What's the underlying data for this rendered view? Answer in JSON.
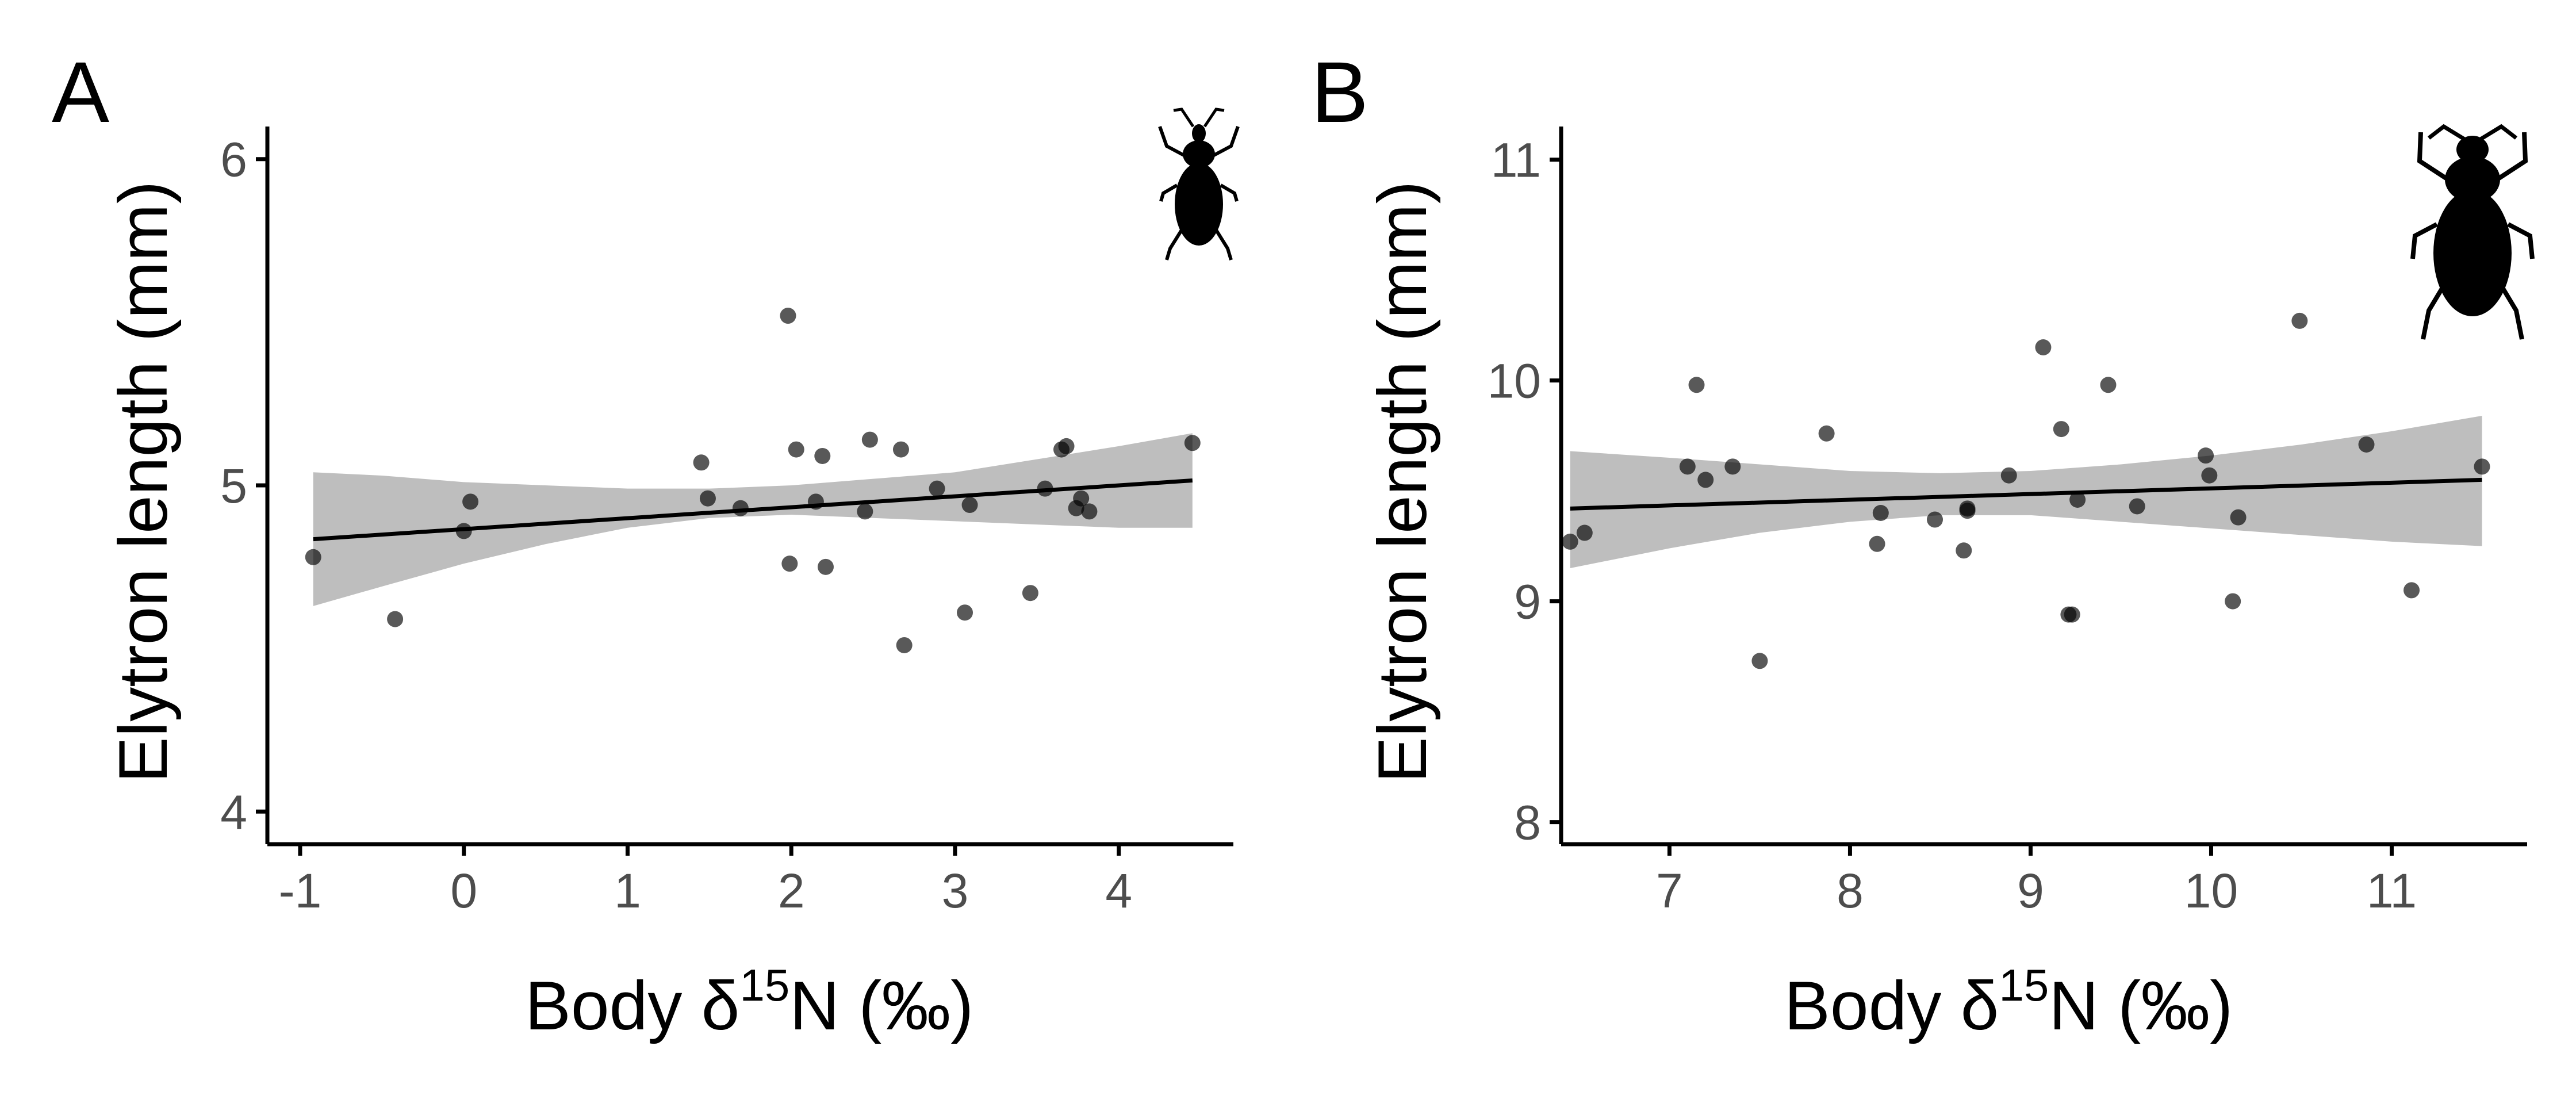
{
  "chart_data": [
    {
      "panel": "A",
      "type": "scatter",
      "xlabel_main": "Body δ",
      "xlabel_sup": "15",
      "xlabel_tail": "N (‰)",
      "ylabel": "Elytron length (mm)",
      "xlim": [
        -1.2,
        4.7
      ],
      "ylim": [
        3.9,
        6.1
      ],
      "x_ticks": [
        -1,
        0,
        1,
        2,
        3,
        4
      ],
      "y_ticks": [
        4,
        5,
        6
      ],
      "x_tick_labels": [
        "-1",
        "0",
        "1",
        "2",
        "3",
        "4"
      ],
      "y_tick_labels": [
        "4",
        "5",
        "6"
      ],
      "grid": false,
      "icon": "weevil-beetle-icon",
      "points": [
        {
          "x": -0.92,
          "y": 4.78
        },
        {
          "x": -0.42,
          "y": 4.59
        },
        {
          "x": 0.0,
          "y": 4.86
        },
        {
          "x": 0.04,
          "y": 4.95
        },
        {
          "x": 1.45,
          "y": 5.07
        },
        {
          "x": 1.49,
          "y": 4.96
        },
        {
          "x": 1.69,
          "y": 4.93
        },
        {
          "x": 1.98,
          "y": 5.52
        },
        {
          "x": 1.99,
          "y": 4.76
        },
        {
          "x": 2.03,
          "y": 5.11
        },
        {
          "x": 2.15,
          "y": 4.95
        },
        {
          "x": 2.19,
          "y": 5.09
        },
        {
          "x": 2.21,
          "y": 4.75
        },
        {
          "x": 2.45,
          "y": 4.92
        },
        {
          "x": 2.48,
          "y": 5.14
        },
        {
          "x": 2.67,
          "y": 5.11
        },
        {
          "x": 2.69,
          "y": 4.51
        },
        {
          "x": 2.89,
          "y": 4.99
        },
        {
          "x": 3.06,
          "y": 4.61
        },
        {
          "x": 3.09,
          "y": 4.94
        },
        {
          "x": 3.46,
          "y": 4.67
        },
        {
          "x": 3.55,
          "y": 4.99
        },
        {
          "x": 3.65,
          "y": 5.11
        },
        {
          "x": 3.68,
          "y": 5.12
        },
        {
          "x": 3.74,
          "y": 4.93
        },
        {
          "x": 3.77,
          "y": 4.96
        },
        {
          "x": 3.82,
          "y": 4.92
        },
        {
          "x": 4.45,
          "y": 5.13
        }
      ],
      "fit": {
        "x": [
          -0.92,
          4.45
        ],
        "y": [
          4.835,
          5.015
        ]
      },
      "ci": {
        "x": [
          -0.92,
          -0.5,
          0.0,
          0.5,
          1.0,
          1.5,
          2.0,
          2.5,
          3.0,
          3.5,
          4.0,
          4.45
        ],
        "lower": [
          4.63,
          4.69,
          4.76,
          4.82,
          4.87,
          4.9,
          4.91,
          4.9,
          4.89,
          4.88,
          4.87,
          4.87
        ],
        "upper": [
          5.04,
          5.03,
          5.01,
          5.0,
          4.99,
          4.99,
          5.0,
          5.02,
          5.04,
          5.08,
          5.12,
          5.16
        ]
      }
    },
    {
      "panel": "B",
      "type": "scatter",
      "xlabel_main": "Body δ",
      "xlabel_sup": "15",
      "xlabel_tail": "N (‰)",
      "ylabel": "Elytron length (mm)",
      "xlim": [
        6.4,
        11.75
      ],
      "ylim": [
        7.9,
        11.15
      ],
      "x_ticks": [
        7,
        8,
        9,
        10,
        11
      ],
      "y_ticks": [
        8,
        9,
        10,
        11
      ],
      "x_tick_labels": [
        "7",
        "8",
        "9",
        "10",
        "11"
      ],
      "y_tick_labels": [
        "8",
        "9",
        "10",
        "11"
      ],
      "grid": false,
      "icon": "ground-beetle-icon",
      "points": [
        {
          "x": 6.45,
          "y": 9.27
        },
        {
          "x": 6.53,
          "y": 9.31
        },
        {
          "x": 7.1,
          "y": 9.61
        },
        {
          "x": 7.15,
          "y": 9.98
        },
        {
          "x": 7.2,
          "y": 9.55
        },
        {
          "x": 7.35,
          "y": 9.61
        },
        {
          "x": 7.5,
          "y": 8.73
        },
        {
          "x": 7.87,
          "y": 9.76
        },
        {
          "x": 8.15,
          "y": 9.26
        },
        {
          "x": 8.17,
          "y": 9.4
        },
        {
          "x": 8.47,
          "y": 9.37
        },
        {
          "x": 8.63,
          "y": 9.23
        },
        {
          "x": 8.65,
          "y": 9.41
        },
        {
          "x": 8.65,
          "y": 9.42
        },
        {
          "x": 8.88,
          "y": 9.57
        },
        {
          "x": 9.07,
          "y": 10.15
        },
        {
          "x": 9.17,
          "y": 9.78
        },
        {
          "x": 9.21,
          "y": 8.94
        },
        {
          "x": 9.23,
          "y": 8.94
        },
        {
          "x": 9.26,
          "y": 9.46
        },
        {
          "x": 9.43,
          "y": 9.98
        },
        {
          "x": 9.59,
          "y": 9.43
        },
        {
          "x": 9.97,
          "y": 9.66
        },
        {
          "x": 9.99,
          "y": 9.57
        },
        {
          "x": 10.12,
          "y": 9.0
        },
        {
          "x": 10.15,
          "y": 9.38
        },
        {
          "x": 10.49,
          "y": 10.27
        },
        {
          "x": 10.86,
          "y": 9.71
        },
        {
          "x": 11.11,
          "y": 9.05
        },
        {
          "x": 11.5,
          "y": 9.61
        }
      ],
      "fit": {
        "x": [
          6.45,
          11.5
        ],
        "y": [
          9.42,
          9.55
        ]
      },
      "ci": {
        "x": [
          6.45,
          7.0,
          7.5,
          8.0,
          8.5,
          9.0,
          9.5,
          10.0,
          10.5,
          11.0,
          11.5
        ],
        "lower": [
          9.15,
          9.24,
          9.31,
          9.36,
          9.39,
          9.39,
          9.36,
          9.33,
          9.3,
          9.27,
          9.25
        ],
        "upper": [
          9.68,
          9.65,
          9.62,
          9.59,
          9.58,
          9.59,
          9.62,
          9.66,
          9.71,
          9.77,
          9.84
        ]
      }
    }
  ]
}
